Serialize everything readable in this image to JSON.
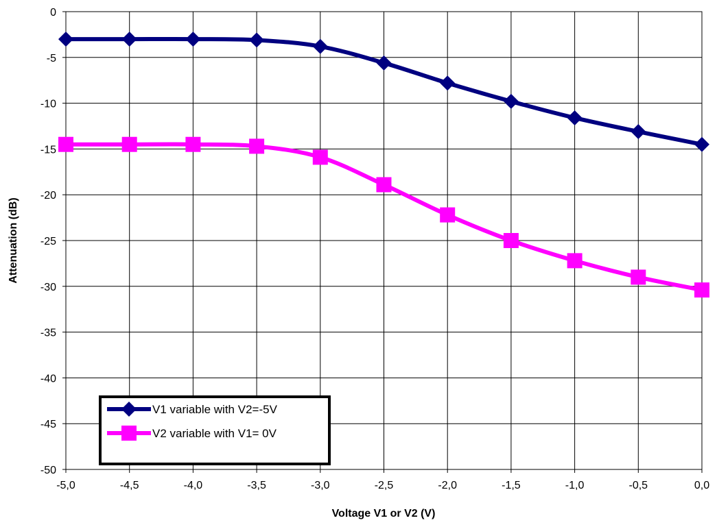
{
  "chart_data": {
    "type": "line",
    "title": "",
    "xlabel": "Voltage V1 or V2 (V)",
    "ylabel": "Attenuation (dB)",
    "xlim": [
      -5.0,
      0.0
    ],
    "ylim": [
      -50,
      0
    ],
    "x_tick_labels": [
      "-5,0",
      "-4,5",
      "-4,0",
      "-3,5",
      "-3,0",
      "-2,5",
      "-2,0",
      "-1,5",
      "-1,0",
      "-0,5",
      "0,0"
    ],
    "y_tick_labels": [
      "0",
      "-5",
      "-10",
      "-15",
      "-20",
      "-25",
      "-30",
      "-35",
      "-40",
      "-45",
      "-50"
    ],
    "grid": true,
    "legend_position": "bottom-left",
    "x": [
      -5.0,
      -4.5,
      -4.0,
      -3.5,
      -3.0,
      -2.5,
      -2.0,
      -1.5,
      -1.0,
      -0.5,
      0.0
    ],
    "series": [
      {
        "name": "V1 variable with V2=-5V",
        "color": "#000080",
        "marker": "diamond",
        "values": [
          -3.0,
          -3.0,
          -3.0,
          -3.1,
          -3.8,
          -5.6,
          -7.8,
          -9.8,
          -11.6,
          -13.1,
          -14.5
        ]
      },
      {
        "name": "V2 variable with V1= 0V",
        "color": "#FF00FF",
        "marker": "square",
        "values": [
          -14.5,
          -14.5,
          -14.5,
          -14.7,
          -15.9,
          -18.9,
          -22.2,
          -25.0,
          -27.2,
          -29.0,
          -30.4
        ]
      }
    ]
  }
}
